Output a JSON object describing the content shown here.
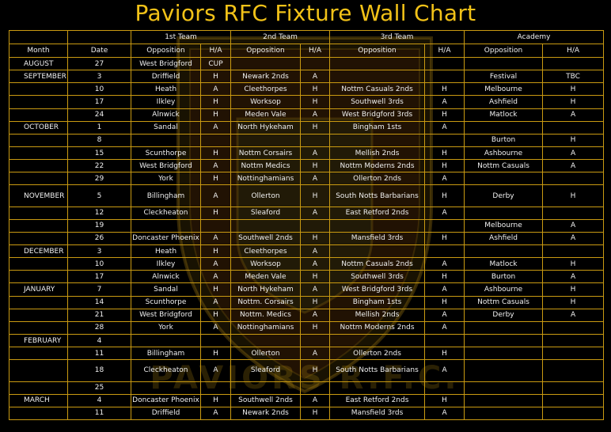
{
  "title": "Paviors RFC Fixture Wall Chart",
  "watermark": "PAVIORS R.F.C.",
  "colors": {
    "background": "#000000",
    "accent": "#f2c218",
    "grid": "#c99a12",
    "text": "#f0f0f0"
  },
  "groups": [
    "1st Team",
    "2nd Team",
    "3rd Team",
    "Academy"
  ],
  "headers": [
    "Month",
    "Date",
    "Opposition",
    "H/A",
    "Opposition",
    "H/A",
    "Opposition",
    "H/A",
    "Opposition",
    "H/A"
  ],
  "rows": [
    [
      "AUGUST",
      "27",
      "West Bridgford",
      "CUP",
      "",
      "",
      "",
      "",
      "",
      ""
    ],
    [
      "SEPTEMBER",
      "3",
      "Driffield",
      "H",
      "Newark 2nds",
      "A",
      "",
      "",
      "Festival",
      "TBC"
    ],
    [
      "",
      "10",
      "Heath",
      "A",
      "Cleethorpes",
      "H",
      "Nottm Casuals 2nds",
      "H",
      "Melbourne",
      "H"
    ],
    [
      "",
      "17",
      "Ilkley",
      "H",
      "Worksop",
      "H",
      "Southwell 3rds",
      "A",
      "Ashfield",
      "H"
    ],
    [
      "",
      "24",
      "Alnwick",
      "H",
      "Meden Vale",
      "A",
      "West Bridgford 3rds",
      "H",
      "Matlock",
      "A"
    ],
    [
      "OCTOBER",
      "1",
      "Sandal",
      "A",
      "North Hykeham",
      "H",
      "Bingham 1sts",
      "A",
      "",
      ""
    ],
    [
      "",
      "8",
      "",
      "",
      "",
      "",
      "",
      "",
      "Burton",
      "H"
    ],
    [
      "",
      "15",
      "Scunthorpe",
      "H",
      "Nottm Corsairs",
      "A",
      "Mellish 2nds",
      "H",
      "Ashbourne",
      "A"
    ],
    [
      "",
      "22",
      "West Bridgford",
      "A",
      "Nottm Medics",
      "H",
      "Nottm Moderns 2nds",
      "H",
      "Nottm Casuals",
      "A"
    ],
    [
      "",
      "29",
      "York",
      "H",
      "Nottinghamians",
      "A",
      "Ollerton 2nds",
      "A",
      "",
      ""
    ],
    [
      "NOVEMBER",
      "5",
      "Billingham",
      "A",
      "Ollerton",
      "H",
      "South Notts Barbarians",
      "H",
      "Derby",
      "H"
    ],
    [
      "",
      "12",
      "Cleckheaton",
      "H",
      "Sleaford",
      "A",
      "East Retford 2nds",
      "A",
      "",
      ""
    ],
    [
      "",
      "19",
      "",
      "",
      "",
      "",
      "",
      "",
      "Melbourne",
      "A"
    ],
    [
      "",
      "26",
      "Doncaster Phoenix",
      "A",
      "Southwell 2nds",
      "H",
      "Mansfield 3rds",
      "H",
      "Ashfield",
      "A"
    ],
    [
      "DECEMBER",
      "3",
      "Heath",
      "H",
      "Cleethorpes",
      "A",
      "",
      "",
      "",
      ""
    ],
    [
      "",
      "10",
      "Ilkley",
      "A",
      "Worksop",
      "A",
      "Nottm Casuals 2nds",
      "A",
      "Matlock",
      "H"
    ],
    [
      "",
      "17",
      "Alnwick",
      "A",
      "Meden Vale",
      "H",
      "Southwell 3rds",
      "H",
      "Burton",
      "A"
    ],
    [
      "JANUARY",
      "7",
      "Sandal",
      "H",
      "North Hykeham",
      "A",
      "West Bridgford 3rds",
      "A",
      "Ashbourne",
      "H"
    ],
    [
      "",
      "14",
      "Scunthorpe",
      "A",
      "Nottm. Corsairs",
      "H",
      "Bingham 1sts",
      "H",
      "Nottm Casuals",
      "H"
    ],
    [
      "",
      "21",
      "West Bridgford",
      "H",
      "Nottm. Medics",
      "A",
      "Mellish 2nds",
      "A",
      "Derby",
      "A"
    ],
    [
      "",
      "28",
      "York",
      "A",
      "Nottinghamians",
      "H",
      "Nottm Moderns 2nds",
      "A",
      "",
      ""
    ],
    [
      "FEBRUARY",
      "4",
      "",
      "",
      "",
      "",
      "",
      "",
      "",
      ""
    ],
    [
      "",
      "11",
      "Billingham",
      "H",
      "Ollerton",
      "A",
      "Ollerton 2nds",
      "H",
      "",
      ""
    ],
    [
      "",
      "18",
      "Cleckheaton",
      "A",
      "Sleaford",
      "H",
      "South Notts Barbarians",
      "A",
      "",
      ""
    ],
    [
      "",
      "25",
      "",
      "",
      "",
      "",
      "",
      "",
      "",
      ""
    ],
    [
      "MARCH",
      "4",
      "Doncaster Phoenix",
      "H",
      "Southwell 2nds",
      "A",
      "East Retford 2nds",
      "H",
      "",
      ""
    ],
    [
      "",
      "11",
      "Driffield",
      "A",
      "Newark 2nds",
      "H",
      "Mansfield 3rds",
      "A",
      "",
      ""
    ]
  ]
}
